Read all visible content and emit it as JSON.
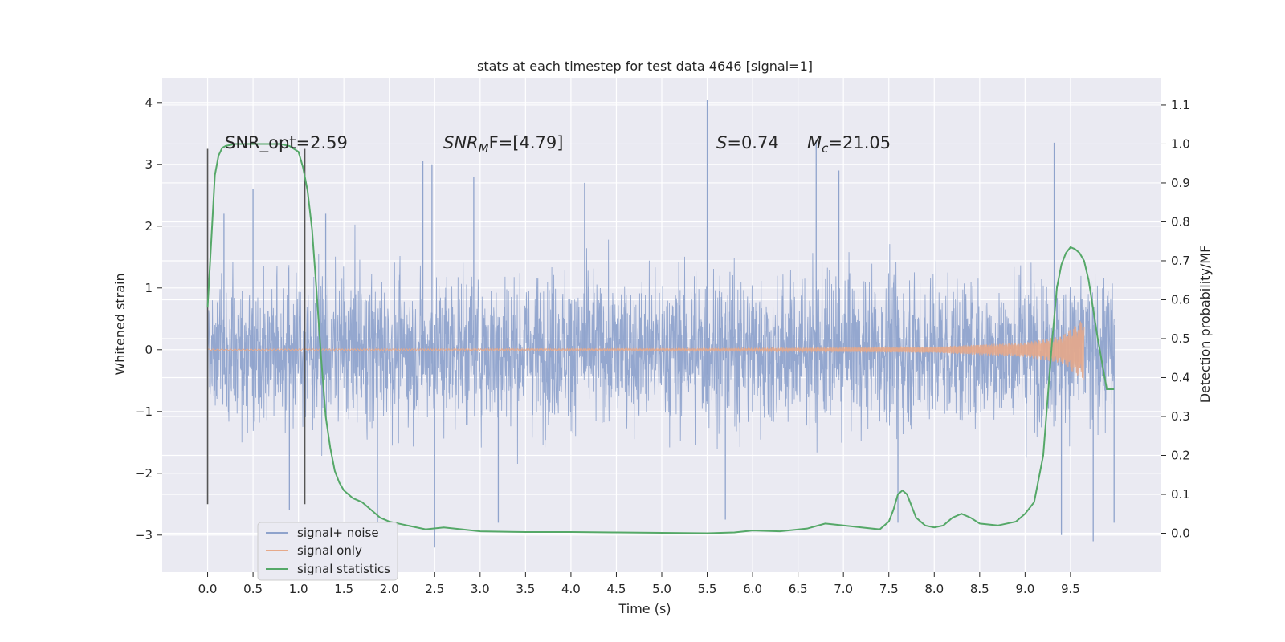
{
  "chart_data": {
    "type": "line",
    "title": "stats at each timestep for test data 4646 [signal=1]",
    "xlabel": "Time (s)",
    "ylabel": "Whitened strain",
    "ylabel_right": "Detection probability/MF",
    "xlim": [
      -0.5,
      10.5
    ],
    "ylim": [
      -3.6,
      4.4
    ],
    "ylim_right": [
      -0.1,
      1.17
    ],
    "x_ticks": [
      "0.0",
      "0.5",
      "1.0",
      "1.5",
      "2.0",
      "2.5",
      "3.0",
      "3.5",
      "4.0",
      "4.5",
      "5.0",
      "5.5",
      "6.0",
      "6.5",
      "7.0",
      "7.5",
      "8.0",
      "8.5",
      "9.0",
      "9.5"
    ],
    "y_ticks": [
      "4",
      "3",
      "2",
      "1",
      "0",
      "−1",
      "−2",
      "−3"
    ],
    "y_right_ticks": [
      "1.1",
      "1.0",
      "0.9",
      "0.8",
      "0.7",
      "0.6",
      "0.5",
      "0.4",
      "0.3",
      "0.2",
      "0.1",
      "0.0"
    ],
    "grid": true,
    "legend_position": "lower-left",
    "annotations": {
      "snr_opt": "SNR_opt=2.59",
      "snr_mf_sym": "SNR",
      "snr_mf_sub": "M",
      "snr_mf_rest": "F=[4.79]",
      "s_sym": "S",
      "s_rest": "=0.74",
      "mc_sym": "M",
      "mc_sub": "c",
      "mc_rest": "=21.05"
    },
    "markers_x": [
      0.0,
      1.07
    ],
    "series": [
      {
        "name": "signal+ noise",
        "color": "#8fa3cc",
        "x_range": [
          0.0,
          9.98
        ],
        "envelope": "dense noise, mostly within ±1.5, peaks to about ±3",
        "peaks": [
          {
            "x": 0.18,
            "y": 2.2
          },
          {
            "x": 0.5,
            "y": 2.6
          },
          {
            "x": 0.9,
            "y": -2.6
          },
          {
            "x": 1.3,
            "y": 2.2
          },
          {
            "x": 1.87,
            "y": -3.3
          },
          {
            "x": 2.37,
            "y": 3.05
          },
          {
            "x": 2.47,
            "y": 3.0
          },
          {
            "x": 2.5,
            "y": -3.2
          },
          {
            "x": 2.93,
            "y": 2.8
          },
          {
            "x": 3.2,
            "y": -2.8
          },
          {
            "x": 4.15,
            "y": 2.7
          },
          {
            "x": 5.5,
            "y": 4.05
          },
          {
            "x": 5.7,
            "y": -2.75
          },
          {
            "x": 6.7,
            "y": 3.4
          },
          {
            "x": 6.95,
            "y": 2.9
          },
          {
            "x": 7.6,
            "y": -2.8
          },
          {
            "x": 9.32,
            "y": 3.35
          },
          {
            "x": 9.4,
            "y": -3.0
          },
          {
            "x": 9.75,
            "y": -3.1
          },
          {
            "x": 9.98,
            "y": -2.8
          }
        ]
      },
      {
        "name": "signal only",
        "color": "#dd8452",
        "x_range": [
          0.0,
          9.65
        ],
        "amplitude_points": [
          {
            "x": 0.0,
            "a": 0.01
          },
          {
            "x": 6.0,
            "a": 0.02
          },
          {
            "x": 8.0,
            "a": 0.05
          },
          {
            "x": 9.0,
            "a": 0.12
          },
          {
            "x": 9.4,
            "a": 0.22
          },
          {
            "x": 9.6,
            "a": 0.45
          },
          {
            "x": 9.65,
            "a": 0.5
          }
        ]
      },
      {
        "name": "signal statistics",
        "color": "#55a868",
        "axis": "right",
        "x": [
          0.0,
          0.04,
          0.08,
          0.12,
          0.16,
          0.2,
          0.3,
          0.4,
          0.6,
          0.8,
          0.9,
          1.0,
          1.05,
          1.1,
          1.15,
          1.2,
          1.25,
          1.3,
          1.35,
          1.4,
          1.45,
          1.5,
          1.6,
          1.7,
          1.8,
          1.9,
          2.0,
          2.2,
          2.4,
          2.6,
          2.8,
          3.0,
          3.5,
          4.0,
          4.5,
          5.0,
          5.5,
          5.8,
          6.0,
          6.3,
          6.6,
          6.8,
          7.0,
          7.2,
          7.4,
          7.5,
          7.55,
          7.6,
          7.65,
          7.7,
          7.75,
          7.8,
          7.9,
          8.0,
          8.1,
          8.2,
          8.3,
          8.4,
          8.5,
          8.7,
          8.9,
          9.0,
          9.1,
          9.2,
          9.25,
          9.3,
          9.35,
          9.4,
          9.45,
          9.5,
          9.55,
          9.6,
          9.65,
          9.7,
          9.8,
          9.9,
          9.98
        ],
        "y": [
          0.58,
          0.75,
          0.92,
          0.97,
          0.99,
          0.995,
          1.0,
          1.0,
          1.0,
          1.0,
          0.995,
          0.98,
          0.94,
          0.88,
          0.78,
          0.62,
          0.45,
          0.3,
          0.22,
          0.16,
          0.13,
          0.11,
          0.09,
          0.08,
          0.06,
          0.04,
          0.03,
          0.02,
          0.01,
          0.015,
          0.01,
          0.005,
          0.003,
          0.003,
          0.002,
          0.001,
          0.0,
          0.002,
          0.007,
          0.005,
          0.012,
          0.025,
          0.02,
          0.015,
          0.01,
          0.03,
          0.06,
          0.1,
          0.11,
          0.1,
          0.07,
          0.04,
          0.02,
          0.015,
          0.02,
          0.04,
          0.05,
          0.04,
          0.025,
          0.02,
          0.03,
          0.05,
          0.08,
          0.2,
          0.35,
          0.5,
          0.63,
          0.69,
          0.72,
          0.735,
          0.73,
          0.72,
          0.7,
          0.65,
          0.5,
          0.37,
          0.37
        ]
      }
    ]
  }
}
